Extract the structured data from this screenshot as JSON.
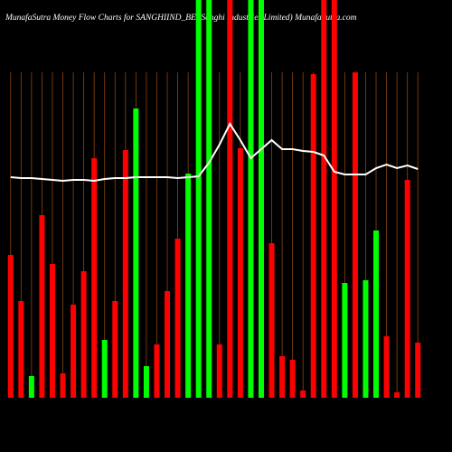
{
  "chart_data": {
    "type": "bar",
    "title": "MunafaSutra  Money Flow  Charts for SANGHIIND_BE                    (Sanghi  Industries  Limited) MunafaSutra.com",
    "values": [
      158,
      107,
      24,
      202,
      148,
      27,
      103,
      140,
      265,
      64,
      107,
      274,
      320,
      35,
      59,
      118,
      176,
      248,
      440,
      440,
      59,
      440,
      276,
      440,
      440,
      171,
      46,
      42,
      8,
      358,
      440,
      440,
      127,
      360,
      130,
      185,
      68,
      6,
      241,
      61
    ],
    "colors": [
      "#ff0000",
      "#ff0000",
      "#00ff00",
      "#ff0000",
      "#ff0000",
      "#ff0000",
      "#ff0000",
      "#ff0000",
      "#ff0000",
      "#00ff00",
      "#ff0000",
      "#ff0000",
      "#00ff00",
      "#00ff00",
      "#ff0000",
      "#ff0000",
      "#ff0000",
      "#00ff00",
      "#00ff00",
      "#00ff00",
      "#ff0000",
      "#ff0000",
      "#ff0000",
      "#00ff00",
      "#00ff00",
      "#ff0000",
      "#ff0000",
      "#ff0000",
      "#ff0000",
      "#ff0000",
      "#ff0000",
      "#ff0000",
      "#00ff00",
      "#ff0000",
      "#00ff00",
      "#00ff00",
      "#ff0000",
      "#ff0000",
      "#ff0000",
      "#ff0000"
    ],
    "line": {
      "color": "#ffffff",
      "values": [
        244,
        243,
        243,
        242,
        241,
        240,
        241,
        241,
        240,
        242,
        243,
        243,
        244,
        244,
        244,
        244,
        243,
        244,
        245,
        260,
        280,
        303,
        285,
        265,
        275,
        285,
        275,
        275,
        273,
        272,
        268,
        250,
        247,
        247,
        247,
        254,
        258,
        254,
        257,
        253
      ]
    },
    "ylim": [
      0,
      440
    ],
    "grid": true,
    "grid_color": "#8b4513"
  }
}
